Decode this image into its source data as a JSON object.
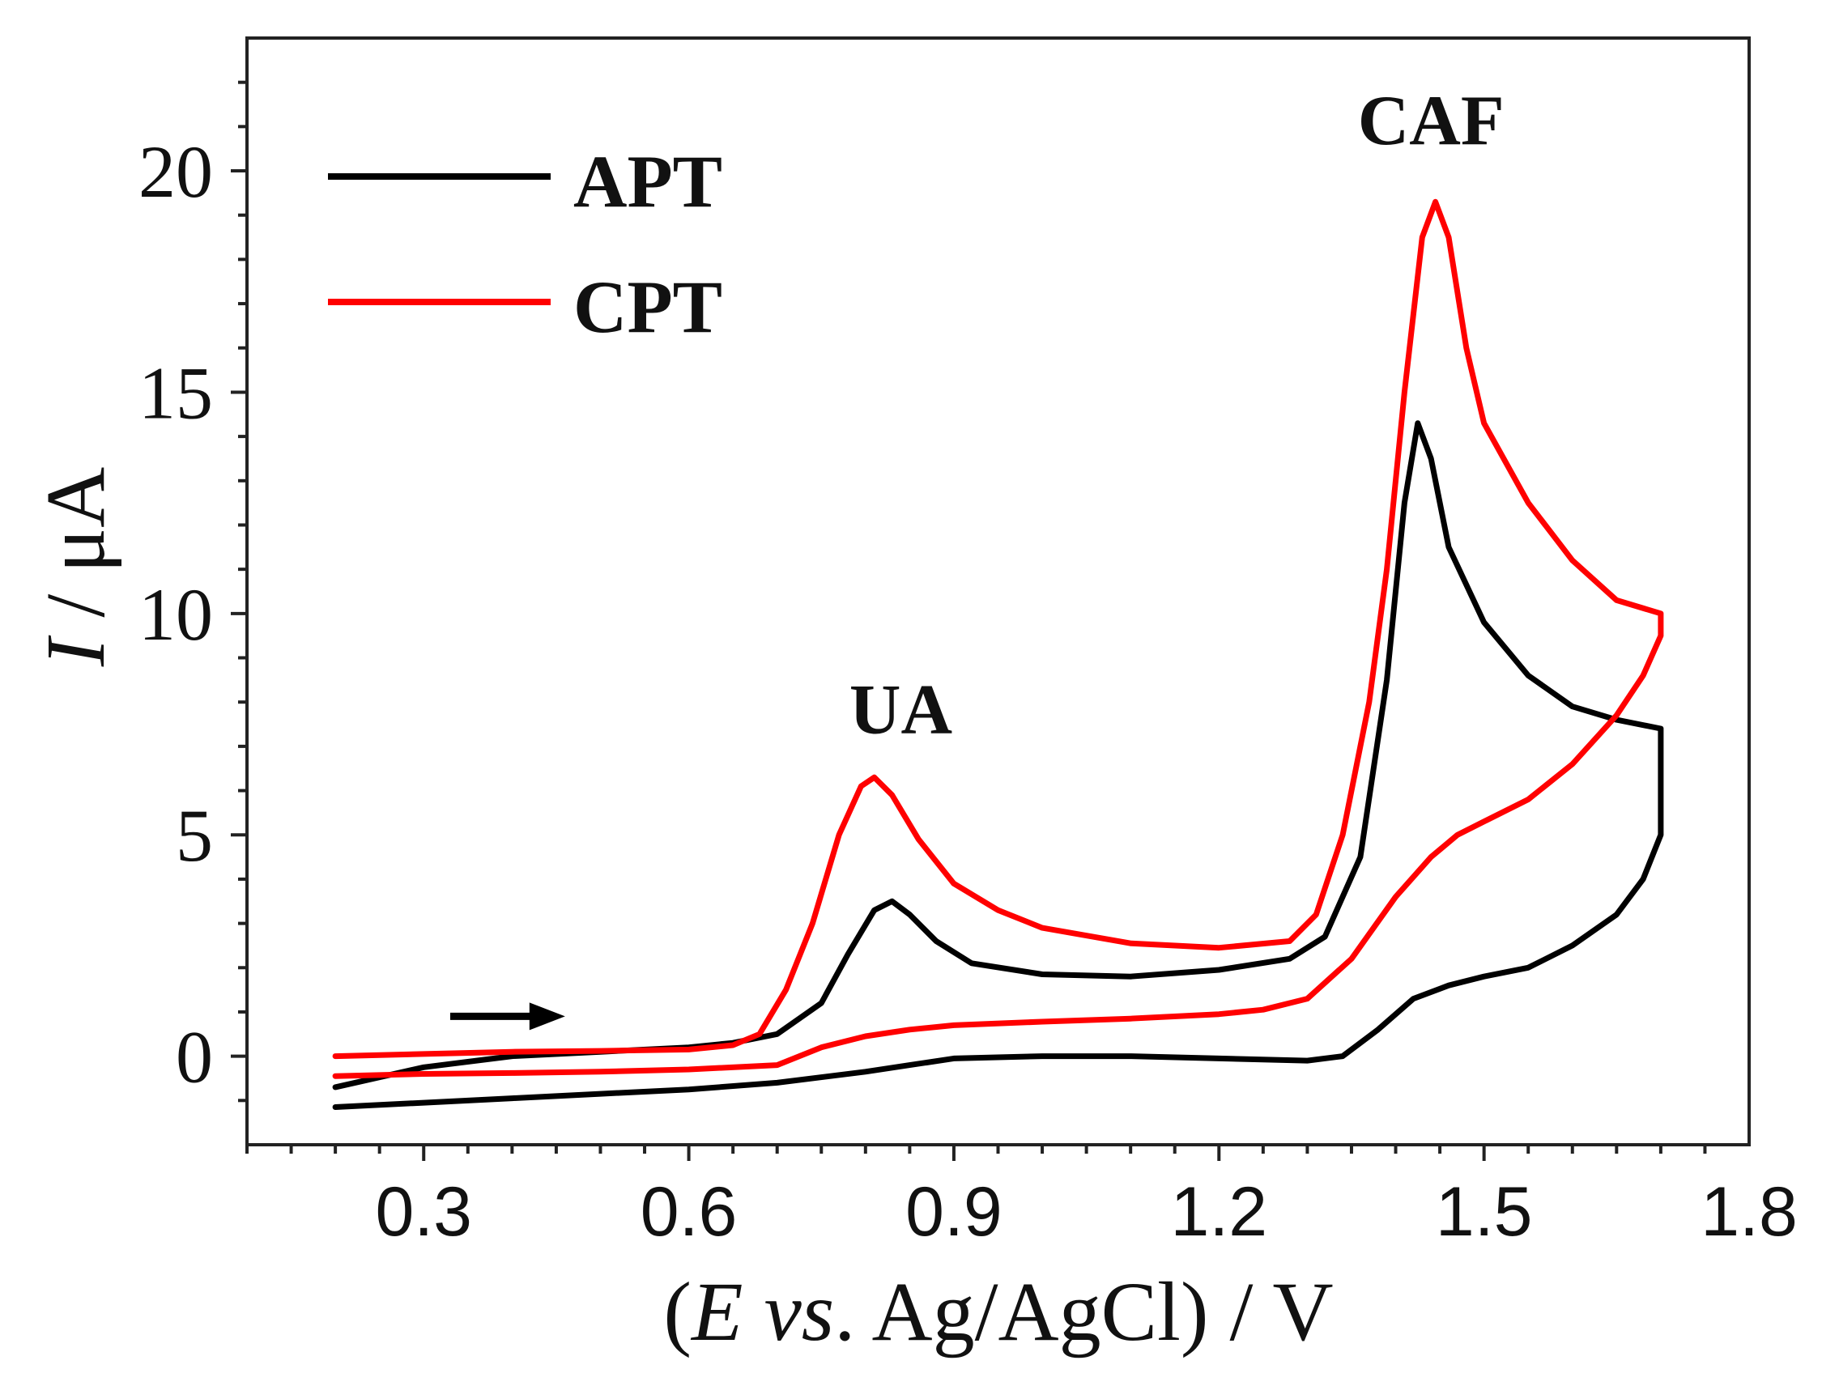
{
  "chart_data": {
    "type": "line",
    "title": "",
    "xlabel_parts": [
      "(",
      "E",
      " ",
      "vs",
      ". Ag/AgCl) / V"
    ],
    "ylabel_parts": [
      "I",
      " / μA"
    ],
    "xlim": [
      0.1,
      1.8
    ],
    "ylim": [
      -2,
      23
    ],
    "x_ticks": [
      {
        "value": 0.3,
        "label": "0.3"
      },
      {
        "value": 0.6,
        "label": "0.6"
      },
      {
        "value": 0.9,
        "label": "0.9"
      },
      {
        "value": 1.2,
        "label": "1.2"
      },
      {
        "value": 1.5,
        "label": "1.5"
      },
      {
        "value": 1.8,
        "label": "1.8"
      }
    ],
    "y_ticks": [
      {
        "value": 0,
        "label": "0"
      },
      {
        "value": 5,
        "label": "5"
      },
      {
        "value": 10,
        "label": "10"
      },
      {
        "value": 15,
        "label": "15"
      },
      {
        "value": 20,
        "label": "20"
      }
    ],
    "legend_position": "top-left",
    "annotations": [
      {
        "label": "UA",
        "x": 0.84,
        "y": 7.3
      },
      {
        "label": "CAF",
        "x": 1.44,
        "y": 20.6
      }
    ],
    "scan_direction_arrow": {
      "from": [
        0.33,
        0.9
      ],
      "to": [
        0.46,
        0.9
      ]
    },
    "series": [
      {
        "name": "APT",
        "color": "#000000",
        "forward": [
          [
            0.2,
            -0.7
          ],
          [
            0.3,
            -0.25
          ],
          [
            0.4,
            0.0
          ],
          [
            0.5,
            0.1
          ],
          [
            0.6,
            0.2
          ],
          [
            0.65,
            0.3
          ],
          [
            0.7,
            0.5
          ],
          [
            0.75,
            1.2
          ],
          [
            0.78,
            2.3
          ],
          [
            0.81,
            3.3
          ],
          [
            0.83,
            3.5
          ],
          [
            0.85,
            3.2
          ],
          [
            0.88,
            2.6
          ],
          [
            0.92,
            2.1
          ],
          [
            1.0,
            1.85
          ],
          [
            1.1,
            1.8
          ],
          [
            1.2,
            1.95
          ],
          [
            1.28,
            2.2
          ],
          [
            1.32,
            2.7
          ],
          [
            1.36,
            4.5
          ],
          [
            1.39,
            8.5
          ],
          [
            1.41,
            12.5
          ],
          [
            1.425,
            14.3
          ],
          [
            1.44,
            13.5
          ],
          [
            1.46,
            11.5
          ],
          [
            1.5,
            9.8
          ],
          [
            1.55,
            8.6
          ],
          [
            1.6,
            7.9
          ],
          [
            1.65,
            7.6
          ],
          [
            1.7,
            7.4
          ]
        ],
        "reverse": [
          [
            1.7,
            7.4
          ],
          [
            1.7,
            5.0
          ],
          [
            1.68,
            4.0
          ],
          [
            1.65,
            3.2
          ],
          [
            1.6,
            2.5
          ],
          [
            1.55,
            2.0
          ],
          [
            1.5,
            1.8
          ],
          [
            1.46,
            1.6
          ],
          [
            1.42,
            1.3
          ],
          [
            1.38,
            0.6
          ],
          [
            1.34,
            0.0
          ],
          [
            1.3,
            -0.1
          ],
          [
            1.2,
            -0.05
          ],
          [
            1.1,
            0.0
          ],
          [
            1.0,
            0.0
          ],
          [
            0.9,
            -0.05
          ],
          [
            0.85,
            -0.2
          ],
          [
            0.8,
            -0.35
          ],
          [
            0.7,
            -0.6
          ],
          [
            0.6,
            -0.75
          ],
          [
            0.5,
            -0.85
          ],
          [
            0.4,
            -0.95
          ],
          [
            0.3,
            -1.05
          ],
          [
            0.2,
            -1.15
          ]
        ]
      },
      {
        "name": "CPT",
        "color": "#ff0000",
        "forward": [
          [
            0.2,
            0.0
          ],
          [
            0.3,
            0.05
          ],
          [
            0.4,
            0.1
          ],
          [
            0.5,
            0.12
          ],
          [
            0.6,
            0.15
          ],
          [
            0.65,
            0.25
          ],
          [
            0.68,
            0.5
          ],
          [
            0.71,
            1.5
          ],
          [
            0.74,
            3.0
          ],
          [
            0.77,
            5.0
          ],
          [
            0.795,
            6.1
          ],
          [
            0.81,
            6.3
          ],
          [
            0.83,
            5.9
          ],
          [
            0.86,
            4.9
          ],
          [
            0.9,
            3.9
          ],
          [
            0.95,
            3.3
          ],
          [
            1.0,
            2.9
          ],
          [
            1.1,
            2.55
          ],
          [
            1.2,
            2.45
          ],
          [
            1.28,
            2.6
          ],
          [
            1.31,
            3.2
          ],
          [
            1.34,
            5.0
          ],
          [
            1.37,
            8.0
          ],
          [
            1.39,
            11.0
          ],
          [
            1.41,
            15.0
          ],
          [
            1.43,
            18.5
          ],
          [
            1.445,
            19.3
          ],
          [
            1.46,
            18.5
          ],
          [
            1.48,
            16.0
          ],
          [
            1.5,
            14.3
          ],
          [
            1.55,
            12.5
          ],
          [
            1.6,
            11.2
          ],
          [
            1.65,
            10.3
          ],
          [
            1.7,
            10.0
          ]
        ],
        "reverse": [
          [
            1.7,
            10.0
          ],
          [
            1.7,
            9.5
          ],
          [
            1.68,
            8.6
          ],
          [
            1.65,
            7.7
          ],
          [
            1.6,
            6.6
          ],
          [
            1.55,
            5.8
          ],
          [
            1.5,
            5.3
          ],
          [
            1.47,
            5.0
          ],
          [
            1.44,
            4.5
          ],
          [
            1.4,
            3.6
          ],
          [
            1.35,
            2.2
          ],
          [
            1.3,
            1.3
          ],
          [
            1.25,
            1.05
          ],
          [
            1.2,
            0.95
          ],
          [
            1.1,
            0.85
          ],
          [
            1.0,
            0.78
          ],
          [
            0.9,
            0.7
          ],
          [
            0.85,
            0.6
          ],
          [
            0.8,
            0.45
          ],
          [
            0.75,
            0.2
          ],
          [
            0.7,
            -0.2
          ],
          [
            0.6,
            -0.3
          ],
          [
            0.5,
            -0.35
          ],
          [
            0.4,
            -0.38
          ],
          [
            0.3,
            -0.4
          ],
          [
            0.2,
            -0.45
          ]
        ]
      }
    ]
  }
}
